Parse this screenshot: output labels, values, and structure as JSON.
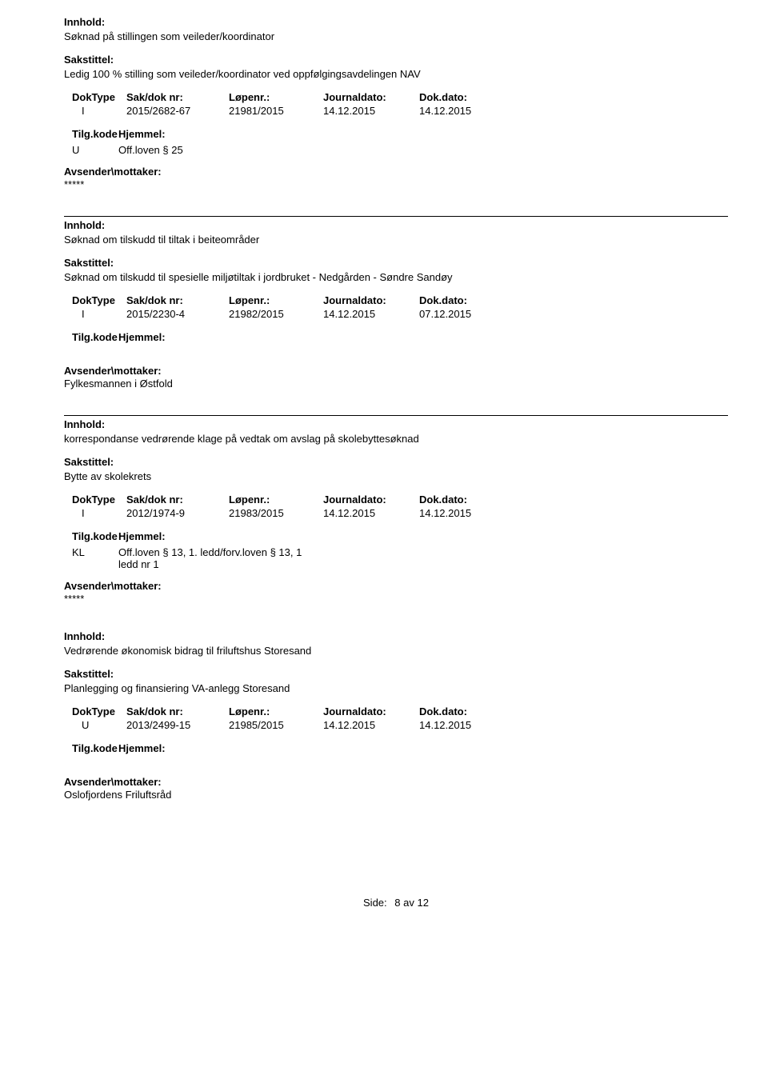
{
  "labels": {
    "innhold": "Innhold:",
    "sakstittel": "Sakstittel:",
    "doktype": "DokType",
    "sakdok": "Sak/dok nr:",
    "lopen": "Løpenr.:",
    "journal": "Journaldato:",
    "dokdato": "Dok.dato:",
    "tilgkode": "Tilg.kode",
    "hjemmel": "Hjemmel:",
    "avsender": "Avsender\\mottaker:",
    "side": "Side:",
    "av": "av"
  },
  "entries": [
    {
      "innhold": "Søknad på stillingen som veileder/koordinator",
      "sakstittel": "Ledig 100 % stilling som veileder/koordinator ved oppfølgingsavdelingen NAV",
      "doktype": "I",
      "sakdok": "2015/2682-67",
      "lopen": "21981/2015",
      "journal": "14.12.2015",
      "dokdato": "14.12.2015",
      "tilgcode": "U",
      "hjemmel": "Off.loven § 25",
      "avsender": "*****",
      "show_tilg_value": true
    },
    {
      "innhold": "Søknad om tilskudd til tiltak i beiteområder",
      "sakstittel": "Søknad om tilskudd til spesielle miljøtiltak i jordbruket - Nedgården - Søndre Sandøy",
      "doktype": "I",
      "sakdok": "2015/2230-4",
      "lopen": "21982/2015",
      "journal": "14.12.2015",
      "dokdato": "07.12.2015",
      "tilgcode": "",
      "hjemmel": "",
      "avsender": "Fylkesmannen i Østfold",
      "show_tilg_value": false
    },
    {
      "innhold": "korrespondanse vedrørende klage på vedtak om avslag på skolebyttesøknad",
      "sakstittel": "Bytte av skolekrets",
      "doktype": "I",
      "sakdok": "2012/1974-9",
      "lopen": "21983/2015",
      "journal": "14.12.2015",
      "dokdato": "14.12.2015",
      "tilgcode": "KL",
      "hjemmel": "Off.loven § 13, 1. ledd/forv.loven § 13, 1 ledd nr 1",
      "avsender": "*****",
      "show_tilg_value": true
    },
    {
      "innhold": "Vedrørende økonomisk bidrag til friluftshus Storesand",
      "sakstittel": "Planlegging og finansiering VA-anlegg Storesand",
      "doktype": "U",
      "sakdok": "2013/2499-15",
      "lopen": "21985/2015",
      "journal": "14.12.2015",
      "dokdato": "14.12.2015",
      "tilgcode": "",
      "hjemmel": "",
      "avsender": "Oslofjordens Friluftsråd",
      "show_tilg_value": false,
      "no_top_border": true
    }
  ],
  "page": {
    "current": "8",
    "total": "12"
  }
}
